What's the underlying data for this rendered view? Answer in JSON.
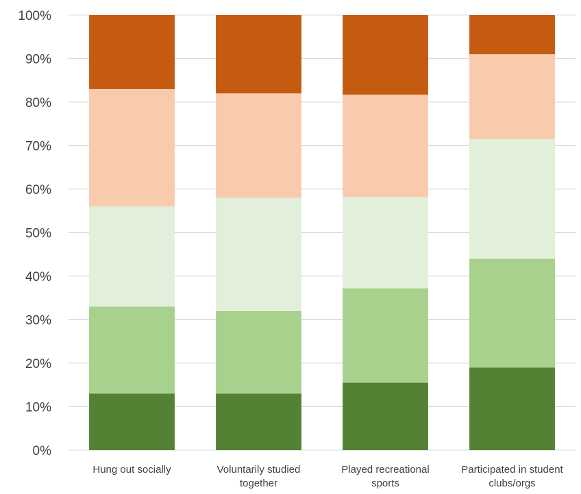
{
  "chart_data": {
    "type": "bar",
    "stacked": true,
    "percent": true,
    "title": "",
    "xlabel": "",
    "ylabel": "",
    "ylim": [
      0,
      100
    ],
    "yticks": [
      "0%",
      "10%",
      "20%",
      "30%",
      "40%",
      "50%",
      "60%",
      "70%",
      "80%",
      "90%",
      "100%"
    ],
    "grid": true,
    "legend": "none",
    "categories": [
      [
        "Hung out socially"
      ],
      [
        "Voluntarily studied",
        "together"
      ],
      [
        "Played recreational",
        "sports"
      ],
      [
        "Participated in student",
        "clubs/orgs"
      ]
    ],
    "series": [
      {
        "color": "#548235",
        "values": [
          13,
          13,
          15.5,
          19
        ]
      },
      {
        "color": "#a9d18e",
        "values": [
          20,
          19,
          21.7,
          25
        ]
      },
      {
        "color": "#e2efda",
        "values": [
          23,
          26,
          21,
          27.5
        ]
      },
      {
        "color": "#f8cbad",
        "values": [
          27,
          24,
          23.5,
          19.5
        ]
      },
      {
        "color": "#c55a11",
        "values": [
          17,
          18,
          18.3,
          9
        ]
      }
    ]
  }
}
